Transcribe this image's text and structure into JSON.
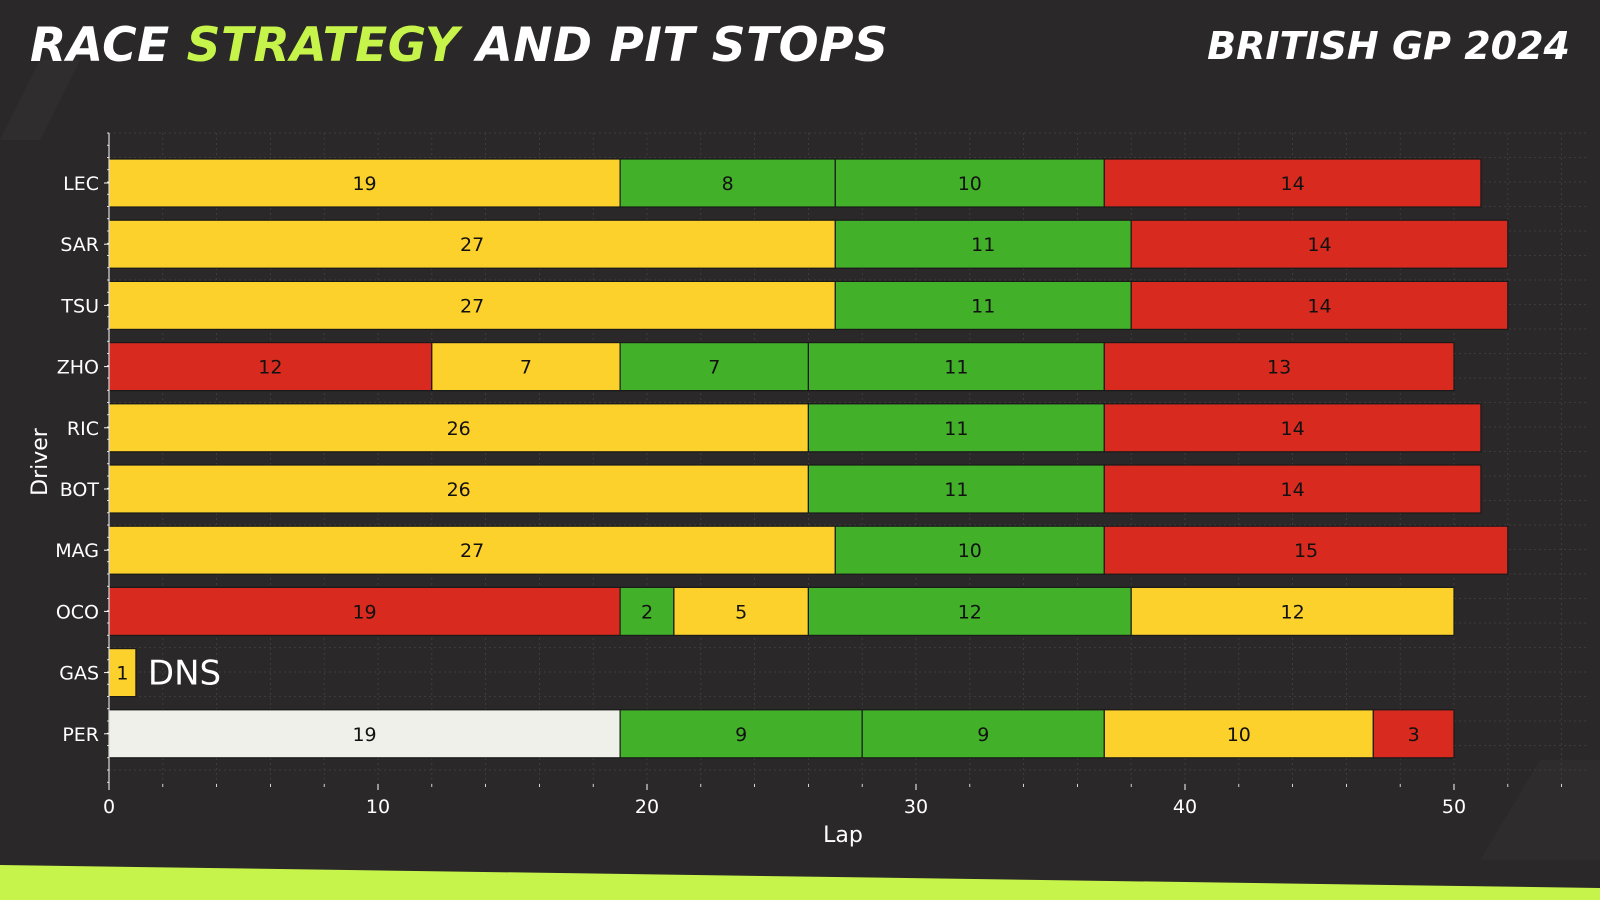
{
  "header": {
    "title_part1": "RACE ",
    "title_accent": "STRATEGY",
    "title_part2": " AND PIT STOPS",
    "event": "BRITISH GP 2024"
  },
  "colors": {
    "background": "#2a2828",
    "accent": "#c6f44a",
    "soft": "#d92a1f",
    "medium": "#fdd12c",
    "hard": "#f0f0eb",
    "intermediate": "#43b02a",
    "grid": "#444242",
    "text": "#ffffff",
    "segment_text": "#111111"
  },
  "chart_data": {
    "type": "bar",
    "orientation": "horizontal-stacked",
    "xlabel": "Lap",
    "ylabel": "Driver",
    "xlim": [
      0,
      55
    ],
    "xticks": [
      0,
      10,
      20,
      30,
      40,
      50
    ],
    "grid": true,
    "drivers": [
      "LEC",
      "SAR",
      "TSU",
      "ZHO",
      "RIC",
      "BOT",
      "MAG",
      "OCO",
      "GAS",
      "PER"
    ],
    "stints": [
      {
        "driver": "LEC",
        "segments": [
          {
            "compound": "MEDIUM",
            "laps": 19
          },
          {
            "compound": "INTERMEDIATE",
            "laps": 8
          },
          {
            "compound": "INTERMEDIATE",
            "laps": 10
          },
          {
            "compound": "SOFT",
            "laps": 14
          }
        ]
      },
      {
        "driver": "SAR",
        "segments": [
          {
            "compound": "MEDIUM",
            "laps": 27
          },
          {
            "compound": "INTERMEDIATE",
            "laps": 11
          },
          {
            "compound": "SOFT",
            "laps": 14
          }
        ]
      },
      {
        "driver": "TSU",
        "segments": [
          {
            "compound": "MEDIUM",
            "laps": 27
          },
          {
            "compound": "INTERMEDIATE",
            "laps": 11
          },
          {
            "compound": "SOFT",
            "laps": 14
          }
        ]
      },
      {
        "driver": "ZHO",
        "segments": [
          {
            "compound": "SOFT",
            "laps": 12
          },
          {
            "compound": "MEDIUM",
            "laps": 7
          },
          {
            "compound": "INTERMEDIATE",
            "laps": 7
          },
          {
            "compound": "INTERMEDIATE",
            "laps": 11
          },
          {
            "compound": "SOFT",
            "laps": 13
          }
        ]
      },
      {
        "driver": "RIC",
        "segments": [
          {
            "compound": "MEDIUM",
            "laps": 26
          },
          {
            "compound": "INTERMEDIATE",
            "laps": 11
          },
          {
            "compound": "SOFT",
            "laps": 14
          }
        ]
      },
      {
        "driver": "BOT",
        "segments": [
          {
            "compound": "MEDIUM",
            "laps": 26
          },
          {
            "compound": "INTERMEDIATE",
            "laps": 11
          },
          {
            "compound": "SOFT",
            "laps": 14
          }
        ]
      },
      {
        "driver": "MAG",
        "segments": [
          {
            "compound": "MEDIUM",
            "laps": 27
          },
          {
            "compound": "INTERMEDIATE",
            "laps": 10
          },
          {
            "compound": "SOFT",
            "laps": 15
          }
        ]
      },
      {
        "driver": "OCO",
        "segments": [
          {
            "compound": "SOFT",
            "laps": 19
          },
          {
            "compound": "INTERMEDIATE",
            "laps": 2
          },
          {
            "compound": "MEDIUM",
            "laps": 5
          },
          {
            "compound": "INTERMEDIATE",
            "laps": 12
          },
          {
            "compound": "MEDIUM",
            "laps": 12
          }
        ]
      },
      {
        "driver": "GAS",
        "segments": [
          {
            "compound": "MEDIUM",
            "laps": 1
          }
        ],
        "note": "DNS"
      },
      {
        "driver": "PER",
        "segments": [
          {
            "compound": "HARD",
            "laps": 19
          },
          {
            "compound": "INTERMEDIATE",
            "laps": 9
          },
          {
            "compound": "INTERMEDIATE",
            "laps": 9
          },
          {
            "compound": "MEDIUM",
            "laps": 10
          },
          {
            "compound": "SOFT",
            "laps": 3
          }
        ]
      }
    ]
  }
}
